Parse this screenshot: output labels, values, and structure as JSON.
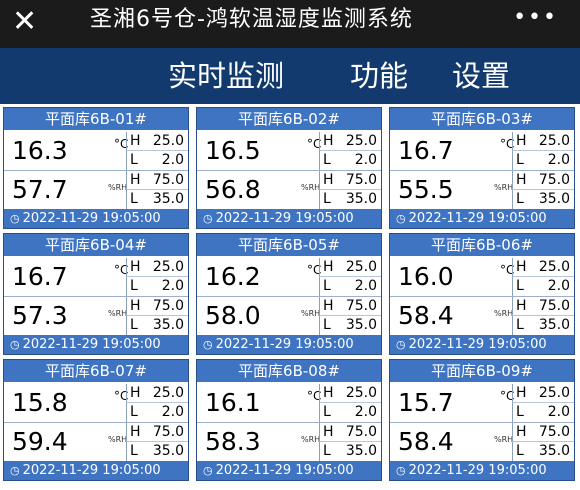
{
  "header": {
    "title": "圣湘6号仓-鸿软温湿度监测系统",
    "close_icon": "close-icon",
    "more_icon": "more-icon"
  },
  "nav": {
    "tabs": [
      "实时监测",
      "功能",
      "设置"
    ]
  },
  "units": {
    "temp": "°C",
    "humidity": "%RH",
    "high": "H",
    "low": "L"
  },
  "theme": {
    "topbar": "#1b1b1b",
    "navbar": "#123a6e",
    "card_header": "#3f74c2"
  },
  "cards": [
    {
      "name": "平面库6B-01#",
      "temp": "16.3",
      "temp_h": "25.0",
      "temp_l": "2.0",
      "hum": "57.7",
      "hum_h": "75.0",
      "hum_l": "35.0",
      "time": "2022-11-29 19:05:00"
    },
    {
      "name": "平面库6B-02#",
      "temp": "16.5",
      "temp_h": "25.0",
      "temp_l": "2.0",
      "hum": "56.8",
      "hum_h": "75.0",
      "hum_l": "35.0",
      "time": "2022-11-29 19:05:00"
    },
    {
      "name": "平面库6B-03#",
      "temp": "16.7",
      "temp_h": "25.0",
      "temp_l": "2.0",
      "hum": "55.5",
      "hum_h": "75.0",
      "hum_l": "35.0",
      "time": "2022-11-29 19:05:00"
    },
    {
      "name": "平面库6B-04#",
      "temp": "16.7",
      "temp_h": "25.0",
      "temp_l": "2.0",
      "hum": "57.3",
      "hum_h": "75.0",
      "hum_l": "35.0",
      "time": "2022-11-29 19:05:00"
    },
    {
      "name": "平面库6B-05#",
      "temp": "16.2",
      "temp_h": "25.0",
      "temp_l": "2.0",
      "hum": "58.0",
      "hum_h": "75.0",
      "hum_l": "35.0",
      "time": "2022-11-29 19:05:00"
    },
    {
      "name": "平面库6B-06#",
      "temp": "16.0",
      "temp_h": "25.0",
      "temp_l": "2.0",
      "hum": "58.4",
      "hum_h": "75.0",
      "hum_l": "35.0",
      "time": "2022-11-29 19:05:00"
    },
    {
      "name": "平面库6B-07#",
      "temp": "15.8",
      "temp_h": "25.0",
      "temp_l": "2.0",
      "hum": "59.4",
      "hum_h": "75.0",
      "hum_l": "35.0",
      "time": "2022-11-29 19:05:00"
    },
    {
      "name": "平面库6B-08#",
      "temp": "16.1",
      "temp_h": "25.0",
      "temp_l": "2.0",
      "hum": "58.3",
      "hum_h": "75.0",
      "hum_l": "35.0",
      "time": "2022-11-29 19:05:00"
    },
    {
      "name": "平面库6B-09#",
      "temp": "15.7",
      "temp_h": "25.0",
      "temp_l": "2.0",
      "hum": "58.4",
      "hum_h": "75.0",
      "hum_l": "35.0",
      "time": "2022-11-29 19:05:00"
    }
  ]
}
